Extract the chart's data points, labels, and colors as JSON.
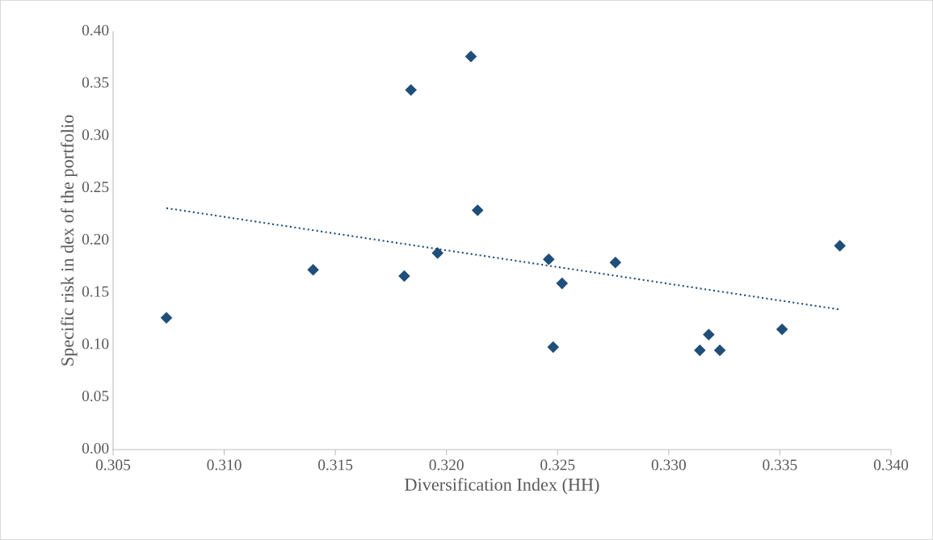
{
  "chart_data": {
    "type": "scatter",
    "xlabel": "Diversification Index (HH)",
    "ylabel": "Specific risk in dex of the portfolio",
    "xlim": [
      0.305,
      0.34
    ],
    "xticks": [
      {
        "value": 0.305,
        "label": "0.305"
      },
      {
        "value": 0.31,
        "label": "0.310"
      },
      {
        "value": 0.315,
        "label": "0.315"
      },
      {
        "value": 0.32,
        "label": "0.320"
      },
      {
        "value": 0.325,
        "label": "0.325"
      },
      {
        "value": 0.33,
        "label": "0.330"
      },
      {
        "value": 0.335,
        "label": "0.335"
      },
      {
        "value": 0.34,
        "label": "0.340"
      }
    ],
    "ylim": [
      0,
      0.4
    ],
    "yticks": [
      {
        "value": 0,
        "label": "0.00"
      },
      {
        "value": 0.05,
        "label": "0.05"
      },
      {
        "value": 0.1,
        "label": "0.10"
      },
      {
        "value": 0.15,
        "label": "0.15"
      },
      {
        "value": 0.2,
        "label": "0.20"
      },
      {
        "value": 0.25,
        "label": "0.25"
      },
      {
        "value": 0.3,
        "label": "0.30"
      },
      {
        "value": 0.35,
        "label": "0.35"
      },
      {
        "value": 0.4,
        "label": "0.40"
      }
    ],
    "grid": false,
    "legend": false,
    "marker": "diamond",
    "series": [
      {
        "color": "#1f4e79",
        "x": [
          0.3074,
          0.314,
          0.3181,
          0.3184,
          0.3196,
          0.3211,
          0.3214,
          0.3246,
          0.3248,
          0.3252,
          0.3276,
          0.3314,
          0.3318,
          0.3323,
          0.3351,
          0.3377
        ],
        "values": [
          0.126,
          0.172,
          0.166,
          0.344,
          0.188,
          0.376,
          0.229,
          0.182,
          0.098,
          0.159,
          0.179,
          0.095,
          0.11,
          0.095,
          0.115,
          0.195
        ]
      },
      {
        "type": "line",
        "color": "#1f4e79",
        "line_style": "dotted",
        "marker": "none",
        "x": [
          0.3074,
          0.3377
        ],
        "values": [
          0.231,
          0.134
        ]
      }
    ]
  }
}
